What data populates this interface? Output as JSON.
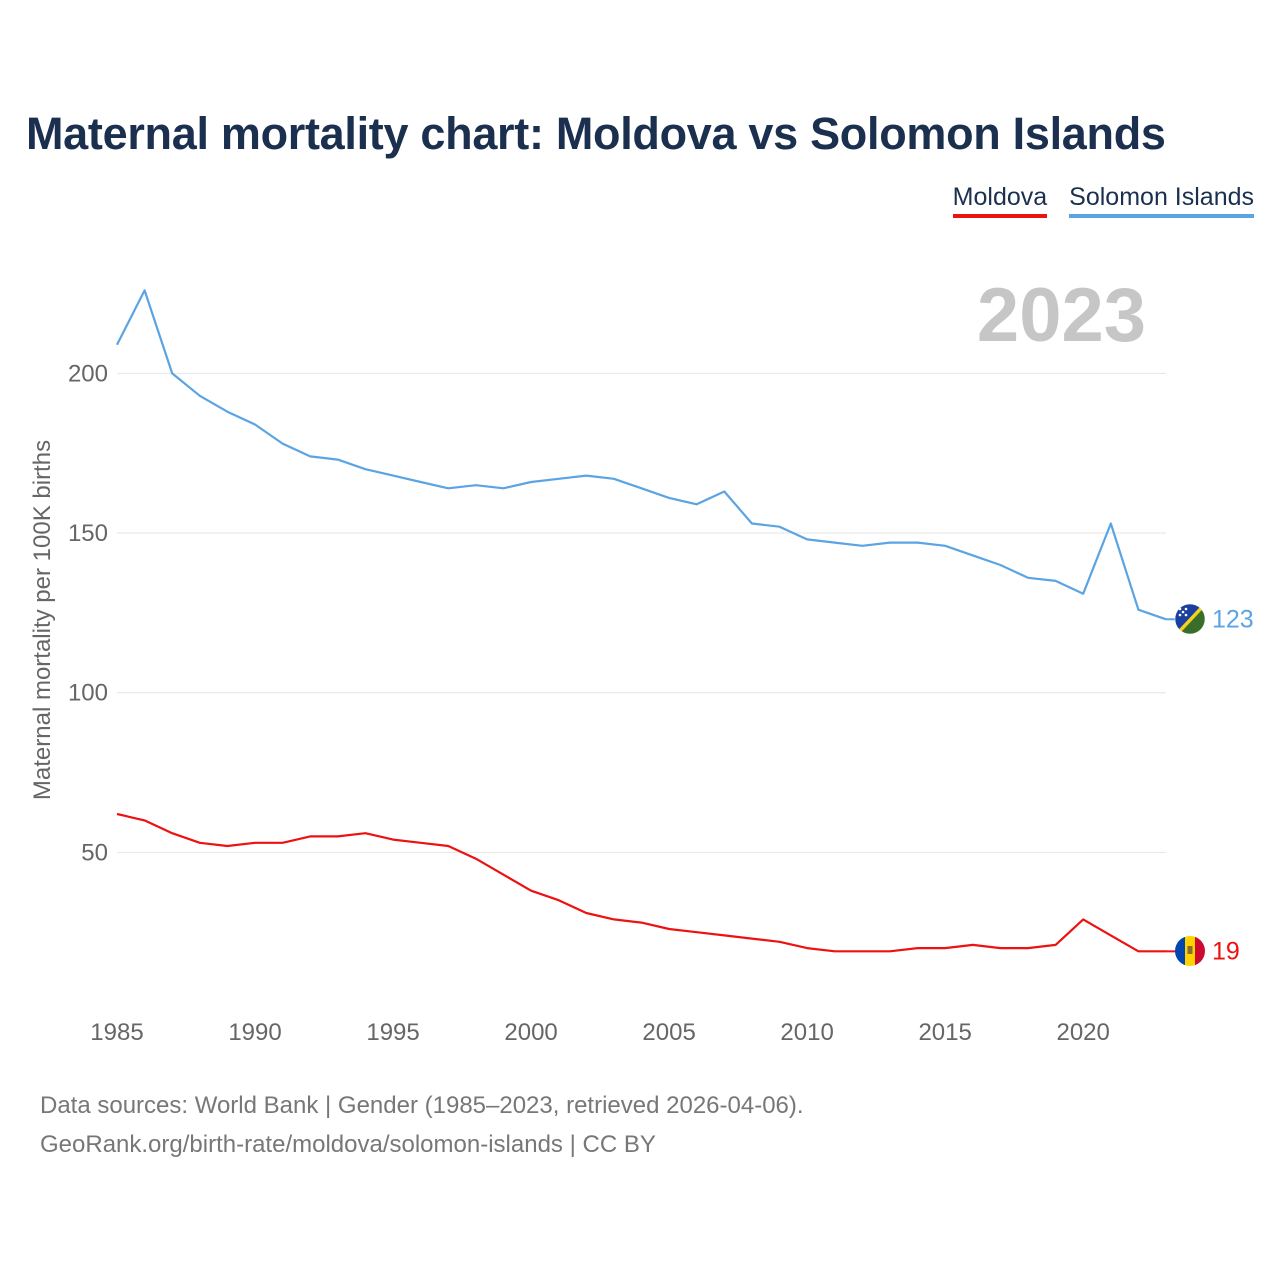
{
  "header": {
    "title": "Maternal mortality chart: Moldova vs Solomon Islands"
  },
  "legend": {
    "items": [
      {
        "label": "Moldova",
        "color": "#ee1111"
      },
      {
        "label": "Solomon Islands",
        "color": "#5ba4e3"
      }
    ]
  },
  "year_display": "2023",
  "footer": {
    "line1": "Data sources: World Bank | Gender (1985–2023, retrieved 2026-04-06).",
    "line2": "GeoRank.org/birth-rate/moldova/solomon-islands | CC BY"
  },
  "chart_data": {
    "type": "line",
    "title": "Maternal mortality chart: Moldova vs Solomon Islands",
    "xlabel": "",
    "ylabel": "Maternal mortality per 100K births",
    "xlim": [
      1985,
      2023
    ],
    "ylim": [
      0,
      230
    ],
    "x_ticks": [
      1985,
      1990,
      1995,
      2000,
      2005,
      2010,
      2015,
      2020
    ],
    "y_ticks": [
      50,
      100,
      150,
      200
    ],
    "grid": true,
    "legend_position": "top-right",
    "x": [
      1985,
      1986,
      1987,
      1988,
      1989,
      1990,
      1991,
      1992,
      1993,
      1994,
      1995,
      1996,
      1997,
      1998,
      1999,
      2000,
      2001,
      2002,
      2003,
      2004,
      2005,
      2006,
      2007,
      2008,
      2009,
      2010,
      2011,
      2012,
      2013,
      2014,
      2015,
      2016,
      2017,
      2018,
      2019,
      2020,
      2021,
      2022,
      2023
    ],
    "series": [
      {
        "name": "Moldova",
        "color": "#ee1111",
        "end_label": "19",
        "flag": "moldova-flag-icon",
        "values": [
          62,
          60,
          56,
          53,
          52,
          53,
          53,
          55,
          55,
          56,
          54,
          53,
          52,
          48,
          43,
          38,
          35,
          31,
          29,
          28,
          26,
          25,
          24,
          23,
          22,
          20,
          19,
          19,
          19,
          20,
          20,
          21,
          20,
          20,
          21,
          29,
          24,
          19,
          19
        ]
      },
      {
        "name": "Solomon Islands",
        "color": "#5ba4e3",
        "end_label": "123",
        "flag": "solomon-islands-flag-icon",
        "values": [
          209,
          226,
          200,
          193,
          188,
          184,
          178,
          174,
          173,
          170,
          168,
          166,
          164,
          165,
          164,
          166,
          167,
          168,
          167,
          164,
          161,
          159,
          163,
          153,
          152,
          148,
          147,
          146,
          147,
          147,
          146,
          143,
          140,
          136,
          135,
          131,
          153,
          126,
          123
        ]
      }
    ]
  }
}
